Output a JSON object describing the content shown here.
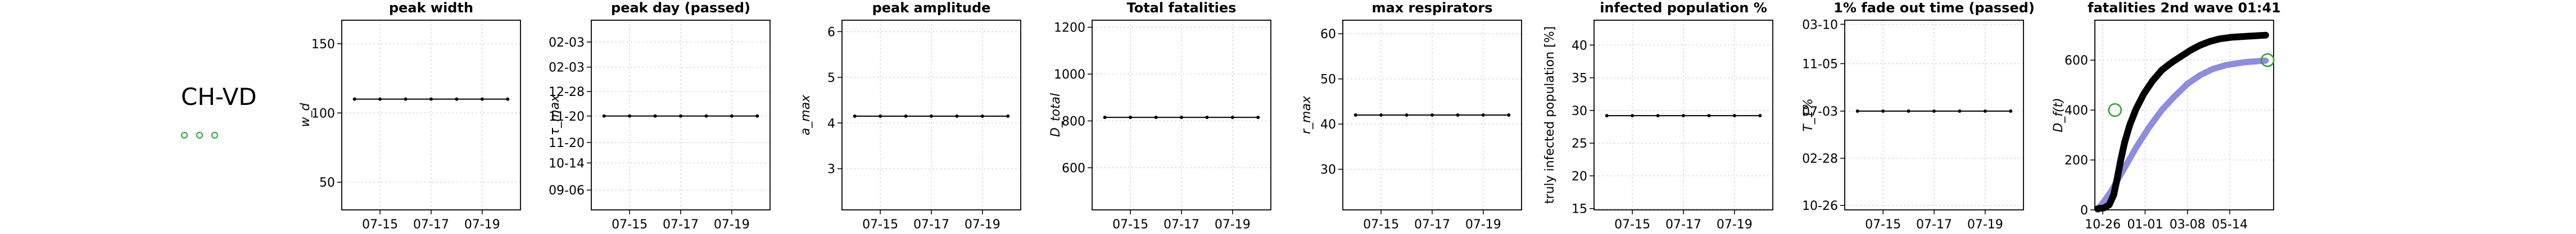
{
  "row_label": "CH-VD",
  "status_dots": 3,
  "chart_data": [
    {
      "type": "line",
      "title": "peak width",
      "ylabel": "w_d",
      "x": [
        "07-14",
        "07-15",
        "07-16",
        "07-17",
        "07-18",
        "07-19",
        "07-20"
      ],
      "xticks": [
        "07-15",
        "07-17",
        "07-19"
      ],
      "series": [
        {
          "values": [
            110,
            110,
            110,
            110,
            110,
            110,
            110
          ]
        }
      ],
      "ylim": [
        30,
        167
      ],
      "yticks": [
        50,
        100,
        150
      ],
      "ytick_labels": [
        "50",
        "100",
        "150"
      ]
    },
    {
      "type": "line",
      "title": "peak day (passed)",
      "ylabel": "τ_max",
      "x": [
        "07-14",
        "07-15",
        "07-16",
        "07-17",
        "07-18",
        "07-19",
        "07-20"
      ],
      "xticks": [
        "07-15",
        "07-17",
        "07-19"
      ],
      "series": [
        {
          "values": [
            0,
            0,
            0,
            0,
            0,
            0,
            0
          ]
        }
      ],
      "ylim": [
        -142,
        145
      ],
      "yticks": [
        -112,
        -71,
        -40,
        0,
        37,
        74,
        112
      ],
      "ytick_labels": [
        "09-06",
        "10-14",
        "11-20",
        "11-20",
        "12-28",
        "02-03",
        "02-03"
      ],
      "ytick_shown": [
        "09-06",
        "10-14",
        "11-20",
        "12-28",
        "02-03"
      ]
    },
    {
      "type": "line",
      "title": "peak amplitude",
      "ylabel": "a_max",
      "x": [
        "07-14",
        "07-15",
        "07-16",
        "07-17",
        "07-18",
        "07-19",
        "07-20"
      ],
      "xticks": [
        "07-15",
        "07-17",
        "07-19"
      ],
      "series": [
        {
          "values": [
            4.15,
            4.15,
            4.15,
            4.15,
            4.15,
            4.15,
            4.15
          ]
        }
      ],
      "ylim": [
        2.1,
        6.25
      ],
      "yticks": [
        3,
        4,
        5,
        6
      ],
      "ytick_labels": [
        "3",
        "4",
        "5",
        "6"
      ]
    },
    {
      "type": "line",
      "title": "Total fatalities",
      "ylabel": "D_total",
      "x": [
        "07-14",
        "07-15",
        "07-16",
        "07-17",
        "07-18",
        "07-19",
        "07-20"
      ],
      "xticks": [
        "07-15",
        "07-17",
        "07-19"
      ],
      "series": [
        {
          "values": [
            815,
            815,
            815,
            815,
            815,
            815,
            815
          ]
        }
      ],
      "ylim": [
        420,
        1230
      ],
      "yticks": [
        600,
        800,
        1000,
        1200
      ],
      "ytick_labels": [
        "600",
        "800",
        "1000",
        "1200"
      ]
    },
    {
      "type": "line",
      "title": "max respirators",
      "ylabel": "r_max",
      "x": [
        "07-14",
        "07-15",
        "07-16",
        "07-17",
        "07-18",
        "07-19",
        "07-20"
      ],
      "xticks": [
        "07-15",
        "07-17",
        "07-19"
      ],
      "series": [
        {
          "values": [
            42,
            42,
            42,
            42,
            42,
            42,
            42
          ]
        }
      ],
      "ylim": [
        21,
        63
      ],
      "yticks": [
        30,
        40,
        50,
        60
      ],
      "ytick_labels": [
        "30",
        "40",
        "50",
        "60"
      ]
    },
    {
      "type": "line",
      "title": "infected population %",
      "ylabel": "truly infected population [%]",
      "x": [
        "07-14",
        "07-15",
        "07-16",
        "07-17",
        "07-18",
        "07-19",
        "07-20"
      ],
      "xticks": [
        "07-15",
        "07-17",
        "07-19"
      ],
      "series": [
        {
          "values": [
            29.2,
            29.2,
            29.2,
            29.2,
            29.2,
            29.2,
            29.2
          ]
        }
      ],
      "ylim": [
        14.8,
        43.8
      ],
      "yticks": [
        15,
        20,
        25,
        30,
        35,
        40
      ],
      "ytick_labels": [
        "15",
        "20",
        "25",
        "30",
        "35",
        "40"
      ]
    },
    {
      "type": "line",
      "title": "1% fade out time (passed)",
      "ylabel": "T_1%",
      "x": [
        "07-14",
        "07-15",
        "07-16",
        "07-17",
        "07-18",
        "07-19",
        "07-20"
      ],
      "xticks": [
        "07-15",
        "07-17",
        "07-19"
      ],
      "series": [
        {
          "values": [
            0,
            0,
            0,
            0,
            0,
            0,
            0
          ]
        }
      ],
      "ylim": [
        -266,
        245
      ],
      "yticks": [
        -254,
        -127,
        0,
        128,
        234
      ],
      "ytick_labels": [
        "10-26",
        "02-28",
        "07-03",
        "11-05",
        "03-10"
      ]
    },
    {
      "type": "line",
      "title": "fatalities 2nd wave 01:41",
      "ylabel": "D_f(t)",
      "x_range": [
        "10-18",
        "07-08"
      ],
      "xticks": [
        "10-26",
        "01-01",
        "03-08",
        "05-14"
      ],
      "ylim": [
        0,
        760
      ],
      "yticks": [
        0,
        200,
        400,
        600
      ],
      "ytick_labels": [
        "0",
        "200",
        "400",
        "600"
      ],
      "series": [
        {
          "color": "#000000",
          "points": [
            [
              0,
              5
            ],
            [
              10,
              8
            ],
            [
              18,
              20
            ],
            [
              25,
              60
            ],
            [
              30,
              120
            ],
            [
              36,
              200
            ],
            [
              42,
              270
            ],
            [
              50,
              340
            ],
            [
              60,
              405
            ],
            [
              72,
              465
            ],
            [
              85,
              515
            ],
            [
              100,
              560
            ],
            [
              115,
              590
            ],
            [
              130,
              615
            ],
            [
              145,
              640
            ],
            [
              160,
              660
            ],
            [
              175,
              675
            ],
            [
              190,
              685
            ],
            [
              210,
              692
            ],
            [
              235,
              696
            ],
            [
              262,
              700
            ]
          ]
        },
        {
          "color": "#8c8ce0",
          "points": [
            [
              0,
              0
            ],
            [
              20,
              70
            ],
            [
              40,
              160
            ],
            [
              60,
              250
            ],
            [
              80,
              330
            ],
            [
              100,
              400
            ],
            [
              120,
              455
            ],
            [
              140,
              505
            ],
            [
              160,
              540
            ],
            [
              180,
              565
            ],
            [
              200,
              580
            ],
            [
              230,
              592
            ],
            [
              262,
              598
            ]
          ]
        }
      ],
      "markers": [
        {
          "x": 27,
          "y": 400,
          "color": "#2ca02c"
        },
        {
          "x": 265,
          "y": 600,
          "color": "#2ca02c"
        }
      ]
    }
  ]
}
